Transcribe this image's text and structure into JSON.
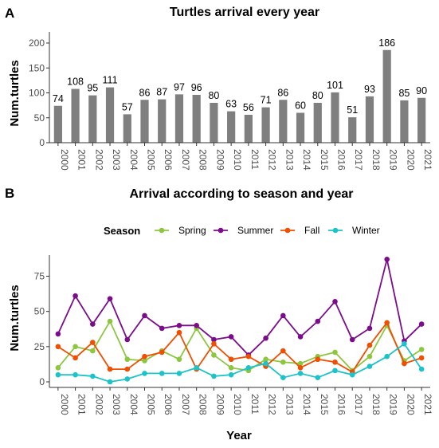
{
  "panel_a": {
    "tag": "A"
  },
  "panel_b": {
    "tag": "B"
  },
  "chart_data": [
    {
      "type": "bar",
      "title": "Turtles arrival every year",
      "xlabel": "",
      "ylabel": "Num.turtles",
      "ylim": [
        0,
        200
      ],
      "yticks": [
        0,
        50,
        100,
        150,
        200
      ],
      "categories": [
        "2000",
        "2001",
        "2002",
        "2003",
        "2004",
        "2005",
        "2006",
        "2007",
        "2008",
        "2009",
        "2010",
        "2011",
        "2012",
        "2013",
        "2014",
        "2015",
        "2016",
        "2017",
        "2018",
        "2019",
        "2020",
        "2021"
      ],
      "values": [
        74,
        108,
        95,
        111,
        57,
        86,
        87,
        97,
        96,
        80,
        63,
        56,
        71,
        86,
        60,
        80,
        101,
        51,
        93,
        186,
        85,
        90
      ],
      "bar_color": "#7f7f7f",
      "grid": false
    },
    {
      "type": "line",
      "title": "Arrival according to season and year",
      "xlabel": "Year",
      "ylabel": "Num.turtles",
      "ylim": [
        0,
        90
      ],
      "yticks": [
        0,
        25,
        50,
        75
      ],
      "legend_title": "Season",
      "legend_position": "top",
      "categories": [
        "2000",
        "2001",
        "2002",
        "2003",
        "2004",
        "2005",
        "2006",
        "2007",
        "2008",
        "2009",
        "2010",
        "2011",
        "2012",
        "2013",
        "2014",
        "2015",
        "2016",
        "2017",
        "2018",
        "2019",
        "2020",
        "2021"
      ],
      "series": [
        {
          "name": "Spring",
          "color": "#8dc63f",
          "values": [
            10,
            25,
            22,
            43,
            16,
            15,
            22,
            16,
            38,
            19,
            10,
            8,
            16,
            14,
            13,
            18,
            21,
            8,
            18,
            40,
            15,
            23
          ]
        },
        {
          "name": "Summer",
          "color": "#7b0c8c",
          "values": [
            34,
            61,
            41,
            59,
            30,
            47,
            38,
            40,
            40,
            30,
            32,
            19,
            31,
            47,
            32,
            43,
            57,
            30,
            38,
            87,
            29,
            41
          ]
        },
        {
          "name": "Fall",
          "color": "#f04e00",
          "values": [
            25,
            17,
            28,
            9,
            9,
            18,
            21,
            35,
            9,
            27,
            16,
            18,
            11,
            22,
            10,
            16,
            14,
            7,
            26,
            42,
            13,
            17
          ]
        },
        {
          "name": "Winter",
          "color": "#1cc3c8",
          "values": [
            5,
            5,
            4,
            0,
            2,
            6,
            6,
            6,
            10,
            4,
            5,
            10,
            13,
            3,
            6,
            3,
            8,
            5,
            11,
            18,
            27,
            9
          ]
        }
      ],
      "grid": false
    }
  ]
}
